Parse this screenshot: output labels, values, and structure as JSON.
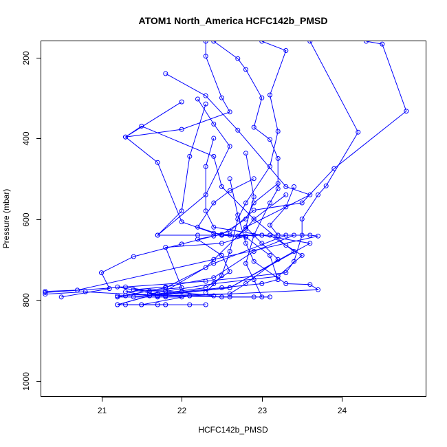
{
  "chart_data": {
    "type": "line",
    "title": "ATOM1 North_America HCFC142b_PMSD",
    "xlabel": "HCFC142b_PMSD",
    "ylabel": "Pressure (mbar)",
    "xlim": [
      20.25,
      25.05
    ],
    "ylim": [
      1040,
      160
    ],
    "y_reversed": true,
    "x_ticks": [
      21,
      22,
      23,
      24
    ],
    "y_ticks": [
      200,
      400,
      600,
      800,
      1000
    ],
    "grid": false,
    "marker": "open-circle",
    "color": "#0000ff",
    "series": [
      {
        "points": [
          [
            22.3,
            160
          ],
          [
            22.3,
            197
          ],
          [
            22.5,
            300
          ],
          [
            22.6,
            335
          ],
          [
            22.0,
            378
          ],
          [
            21.3,
            397
          ],
          [
            21.7,
            460
          ],
          [
            22.0,
            607
          ],
          [
            22.4,
            635
          ],
          [
            22.8,
            642
          ],
          [
            22.5,
            660
          ],
          [
            21.8,
            670
          ],
          [
            22.0,
            770
          ],
          [
            21.3,
            780
          ],
          [
            21.6,
            790
          ],
          [
            21.2,
            812
          ],
          [
            21.3,
            812
          ],
          [
            21.5,
            812
          ],
          [
            21.7,
            812
          ],
          [
            21.8,
            812
          ]
        ]
      },
      {
        "points": [
          [
            22.4,
            160
          ],
          [
            22.7,
            203
          ],
          [
            22.8,
            230
          ],
          [
            23.0,
            300
          ],
          [
            22.9,
            373
          ],
          [
            23.1,
            403
          ],
          [
            23.2,
            450
          ],
          [
            23.2,
            525
          ],
          [
            23.1,
            560
          ],
          [
            22.9,
            640
          ],
          [
            22.8,
            710
          ],
          [
            22.9,
            750
          ],
          [
            23.0,
            793
          ]
        ]
      },
      {
        "points": [
          [
            23.0,
            160
          ],
          [
            23.3,
            183
          ],
          [
            23.1,
            293
          ],
          [
            23.2,
            383
          ],
          [
            23.1,
            470
          ],
          [
            22.8,
            560
          ],
          [
            22.7,
            600
          ],
          [
            22.6,
            680
          ],
          [
            22.5,
            740
          ],
          [
            22.3,
            782
          ]
        ]
      },
      {
        "points": [
          [
            23.6,
            160
          ],
          [
            24.2,
            385
          ],
          [
            23.8,
            518
          ],
          [
            23.7,
            540
          ],
          [
            23.5,
            600
          ],
          [
            23.5,
            640
          ],
          [
            23.4,
            705
          ],
          [
            23.3,
            733
          ],
          [
            22.3,
            754
          ],
          [
            20.3,
            782
          ]
        ]
      },
      {
        "points": [
          [
            24.3,
            160
          ],
          [
            24.5,
            167
          ],
          [
            24.8,
            333
          ],
          [
            23.9,
            475
          ],
          [
            23.5,
            560
          ],
          [
            22.9,
            578
          ],
          [
            22.6,
            630
          ],
          [
            22.4,
            642
          ],
          [
            22.0,
            662
          ],
          [
            21.4,
            693
          ],
          [
            21.0,
            733
          ],
          [
            21.1,
            772
          ],
          [
            20.5,
            793
          ]
        ]
      },
      {
        "points": [
          [
            21.8,
            240
          ],
          [
            22.3,
            295
          ],
          [
            22.7,
            380
          ],
          [
            23.3,
            520
          ],
          [
            23.6,
            540
          ],
          [
            22.8,
            620
          ],
          [
            22.7,
            642
          ],
          [
            23.0,
            640
          ],
          [
            23.6,
            640
          ],
          [
            23.7,
            642
          ],
          [
            22.4,
            700
          ],
          [
            20.7,
            776
          ],
          [
            20.3,
            779
          ]
        ]
      },
      {
        "points": [
          [
            22.2,
            303
          ],
          [
            22.4,
            365
          ],
          [
            22.6,
            420
          ],
          [
            22.3,
            540
          ],
          [
            21.7,
            640
          ],
          [
            22.2,
            640
          ],
          [
            22.6,
            640
          ],
          [
            23.2,
            640
          ],
          [
            23.3,
            640
          ],
          [
            22.4,
            710
          ],
          [
            21.8,
            770
          ],
          [
            21.2,
            793
          ],
          [
            21.7,
            793
          ],
          [
            21.8,
            793
          ],
          [
            22.0,
            793
          ]
        ]
      },
      {
        "points": [
          [
            22.0,
            310
          ],
          [
            21.3,
            397
          ],
          [
            21.5,
            370
          ],
          [
            22.4,
            445
          ],
          [
            22.5,
            520
          ],
          [
            22.9,
            600
          ],
          [
            23.3,
            665
          ],
          [
            23.4,
            680
          ],
          [
            22.6,
            770
          ],
          [
            21.7,
            790
          ],
          [
            22.1,
            790
          ],
          [
            22.5,
            793
          ],
          [
            22.9,
            793
          ]
        ]
      },
      {
        "points": [
          [
            22.3,
            315
          ],
          [
            22.1,
            445
          ],
          [
            22.0,
            580
          ],
          [
            21.7,
            640
          ],
          [
            23.1,
            640
          ],
          [
            23.5,
            690
          ],
          [
            23.2,
            742
          ],
          [
            22.4,
            760
          ],
          [
            21.6,
            785
          ],
          [
            21.7,
            790
          ],
          [
            22.6,
            793
          ],
          [
            23.1,
            793
          ]
        ]
      },
      {
        "points": [
          [
            22.4,
            400
          ],
          [
            22.3,
            470
          ],
          [
            22.3,
            580
          ],
          [
            22.4,
            620
          ],
          [
            23.0,
            640
          ],
          [
            23.6,
            660
          ],
          [
            22.6,
            770
          ],
          [
            21.6,
            790
          ],
          [
            21.2,
            812
          ],
          [
            22.1,
            812
          ],
          [
            22.3,
            812
          ]
        ]
      },
      {
        "points": [
          [
            22.6,
            500
          ],
          [
            22.7,
            590
          ],
          [
            22.8,
            660
          ],
          [
            22.9,
            705
          ],
          [
            23.3,
            760
          ],
          [
            23.6,
            762
          ],
          [
            23.7,
            775
          ],
          [
            22.1,
            790
          ],
          [
            21.5,
            812
          ],
          [
            21.8,
            812
          ]
        ]
      },
      {
        "points": [
          [
            22.8,
            437
          ],
          [
            22.9,
            545
          ],
          [
            22.8,
            620
          ],
          [
            23.0,
            660
          ],
          [
            23.2,
            700
          ],
          [
            22.8,
            760
          ],
          [
            22.6,
            785
          ],
          [
            21.7,
            790
          ],
          [
            20.8,
            780
          ],
          [
            20.3,
            786
          ]
        ]
      },
      {
        "points": [
          [
            23.2,
            512
          ],
          [
            22.9,
            560
          ],
          [
            22.8,
            600
          ],
          [
            22.5,
            638
          ],
          [
            22.2,
            650
          ],
          [
            22.5,
            690
          ],
          [
            22.6,
            730
          ],
          [
            22.3,
            770
          ],
          [
            21.7,
            785
          ],
          [
            21.2,
            790
          ],
          [
            21.3,
            790
          ]
        ]
      },
      {
        "points": [
          [
            23.3,
            540
          ],
          [
            22.9,
            600
          ],
          [
            22.8,
            625
          ],
          [
            22.7,
            642
          ],
          [
            22.3,
            720
          ],
          [
            21.8,
            778
          ],
          [
            21.6,
            778
          ],
          [
            21.3,
            768
          ],
          [
            21.2,
            768
          ],
          [
            21.8,
            790
          ]
        ]
      },
      {
        "points": [
          [
            23.4,
            520
          ],
          [
            23.3,
            570
          ],
          [
            23.1,
            615
          ],
          [
            23.2,
            640
          ],
          [
            23.4,
            640
          ],
          [
            22.9,
            680
          ],
          [
            22.4,
            745
          ],
          [
            21.8,
            768
          ],
          [
            21.4,
            775
          ],
          [
            21.8,
            778
          ],
          [
            22.4,
            790
          ]
        ]
      },
      {
        "points": [
          [
            22.9,
            500
          ],
          [
            22.6,
            530
          ],
          [
            22.4,
            560
          ],
          [
            22.2,
            620
          ],
          [
            22.5,
            640
          ],
          [
            22.8,
            645
          ],
          [
            23.1,
            690
          ],
          [
            23.2,
            750
          ],
          [
            23.0,
            760
          ],
          [
            22.5,
            770
          ],
          [
            22.0,
            780
          ],
          [
            21.4,
            793
          ]
        ]
      }
    ]
  }
}
